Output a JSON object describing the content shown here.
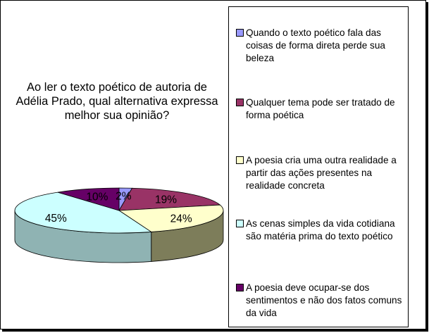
{
  "chart_data": {
    "type": "pie",
    "title": "Ao ler o texto poético de autoria de Adélia Prado, qual alternativa expressa melhor sua opinião?",
    "slices": [
      {
        "label": "Quando o texto poético fala das coisas de forma direta perde sua beleza",
        "value": 2,
        "display": "2%",
        "color": "#9999ff",
        "side_color": "#4d4d99"
      },
      {
        "label": "Qualquer tema pode ser tratado de forma poética",
        "value": 19,
        "display": "19%",
        "color": "#993366",
        "side_color": "#4d1a33"
      },
      {
        "label": "A poesia cria uma outra realidade a partir das ações presentes na realidade concreta",
        "value": 24,
        "display": "24%",
        "color": "#ffffcc",
        "side_color": "#7d7d5a"
      },
      {
        "label": "As cenas simples da vida cotidiana são matéria prima do texto poético",
        "value": 45,
        "display": "45%",
        "color": "#ccffff",
        "side_color": "#8fb3b3"
      },
      {
        "label": "A poesia deve ocupar-se dos sentimentos e não dos fatos comuns da vida",
        "value": 10,
        "display": "10%",
        "color": "#660066",
        "side_color": "#330033"
      }
    ],
    "legend_position": "right"
  }
}
